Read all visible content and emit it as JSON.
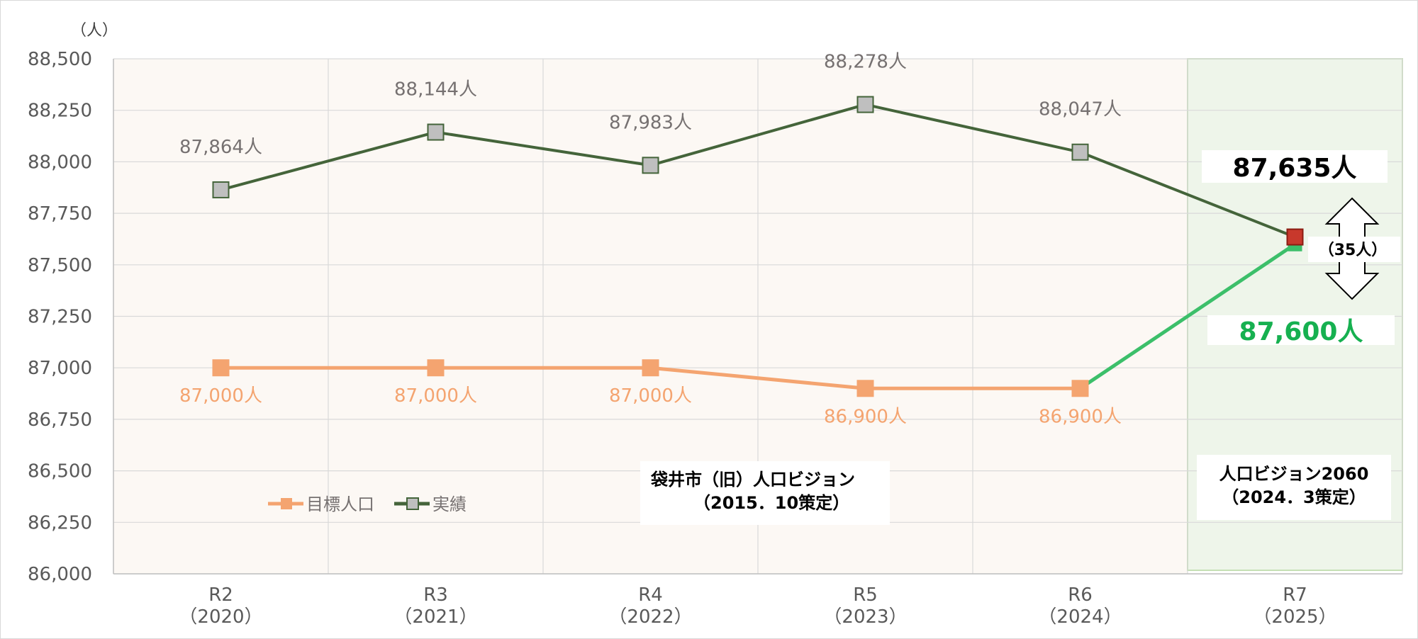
{
  "chart_data": {
    "type": "line",
    "unit_label": "（人）",
    "categories": [
      [
        "R2",
        "（2020）"
      ],
      [
        "R3",
        "（2021）"
      ],
      [
        "R4",
        "（2022）"
      ],
      [
        "R5",
        "（2023）"
      ],
      [
        "R6",
        "（2024）"
      ],
      [
        "R7",
        "（2025）"
      ]
    ],
    "yticks": [
      "88,500",
      "88,250",
      "88,000",
      "87,750",
      "87,500",
      "87,250",
      "87,000",
      "86,750",
      "86,500",
      "86,250",
      "86,000"
    ],
    "ylim": [
      86000,
      88500
    ],
    "ystep": 250,
    "series": [
      {
        "name": "目標人口",
        "color": "#f4a470",
        "values": [
          87000,
          87000,
          87000,
          86900,
          86900,
          87600
        ],
        "labels": [
          "87,000人",
          "87,000人",
          "87,000人",
          "86,900人",
          "86,900人",
          "87,600人"
        ],
        "final_segment_color": "#3cbf6a"
      },
      {
        "name": "実績",
        "color": "#44643a",
        "values": [
          87864,
          88144,
          87983,
          88278,
          88047,
          87635
        ],
        "labels": [
          "87,864人",
          "88,144人",
          "87,983人",
          "88,278人",
          "88,047人",
          "87,635人"
        ],
        "final_marker_color": "#c8382c"
      }
    ],
    "difference_label": "（35人）",
    "annotations": {
      "old_vision": [
        "袋井市（旧）人口ビジョン",
        "（2015．10策定）"
      ],
      "new_vision": [
        "人口ビジョン2060",
        "（2024．3策定）"
      ]
    },
    "region_colors": {
      "old": "#fcf8f4",
      "new": "#eef5ea"
    },
    "grid": true,
    "legend_position": "bottom-left"
  }
}
